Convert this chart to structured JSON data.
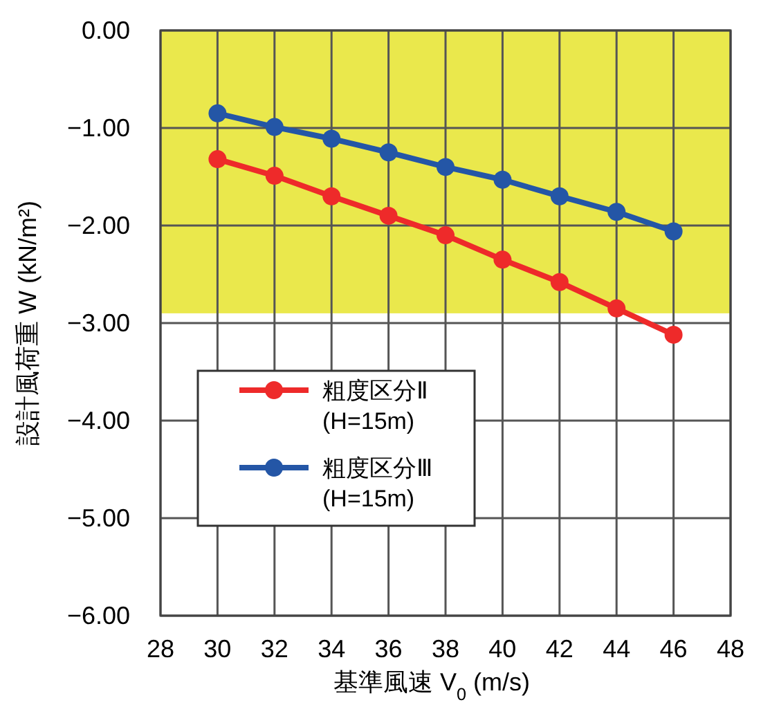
{
  "chart_data": {
    "type": "line",
    "xlabel": "基準風速 V$_{0}$ (m/s)",
    "ylabel": "設計風荷重 W (kN/m²)",
    "x": [
      30,
      32,
      34,
      36,
      38,
      40,
      42,
      44,
      46
    ],
    "series": [
      {
        "name": "粗度区分Ⅱ\n(H=15m)",
        "color": "#ee2a2a",
        "values": [
          -1.32,
          -1.49,
          -1.7,
          -1.9,
          -2.1,
          -2.35,
          -2.58,
          -2.85,
          -3.12
        ]
      },
      {
        "name": "粗度区分Ⅲ\n(H=15m)",
        "color": "#2456a6",
        "values": [
          -0.85,
          -0.99,
          -1.11,
          -1.25,
          -1.4,
          -1.53,
          -1.7,
          -1.86,
          -2.06
        ]
      }
    ],
    "xlim": [
      28,
      48
    ],
    "xticks": [
      28,
      30,
      32,
      34,
      36,
      38,
      40,
      42,
      44,
      46,
      48
    ],
    "ylim": [
      -6,
      0
    ],
    "yticks": [
      {
        "value": -6,
        "label": "−6.00"
      },
      {
        "value": -5,
        "label": "−5.00"
      },
      {
        "value": -4,
        "label": "−4.00"
      },
      {
        "value": -3,
        "label": "−3.00"
      },
      {
        "value": -2,
        "label": "−2.00"
      },
      {
        "value": -1,
        "label": "−1.00"
      },
      {
        "value": 0,
        "label": "0.00"
      }
    ],
    "bands": [
      {
        "axis": "y",
        "from": -2.9,
        "to": 0,
        "color": "#eae84c"
      }
    ],
    "grid": true,
    "legend": "left",
    "marker": "circle",
    "line_style": "solid"
  }
}
